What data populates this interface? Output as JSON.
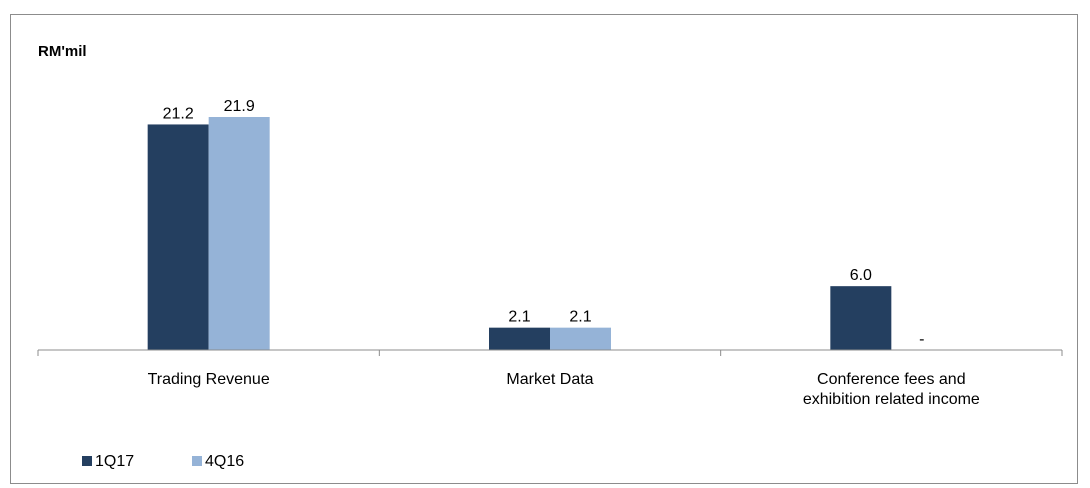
{
  "chart_data": {
    "type": "bar",
    "unit_label": "RM'mil",
    "categories": [
      [
        "Trading Revenue"
      ],
      [
        "Market Data"
      ],
      [
        "Conference fees and",
        "exhibition related income"
      ]
    ],
    "series": [
      {
        "name": "1Q17",
        "color": "#243f60",
        "values": [
          21.2,
          2.1,
          6.0
        ],
        "labels": [
          "21.2",
          "2.1",
          "6.0"
        ]
      },
      {
        "name": "4Q16",
        "color": "#95b3d7",
        "values": [
          21.9,
          2.1,
          0
        ],
        "labels": [
          "21.9",
          "2.1",
          "-"
        ]
      }
    ],
    "ylim": [
      0,
      21.9
    ],
    "grid": false,
    "legend_position": "bottom-left"
  }
}
